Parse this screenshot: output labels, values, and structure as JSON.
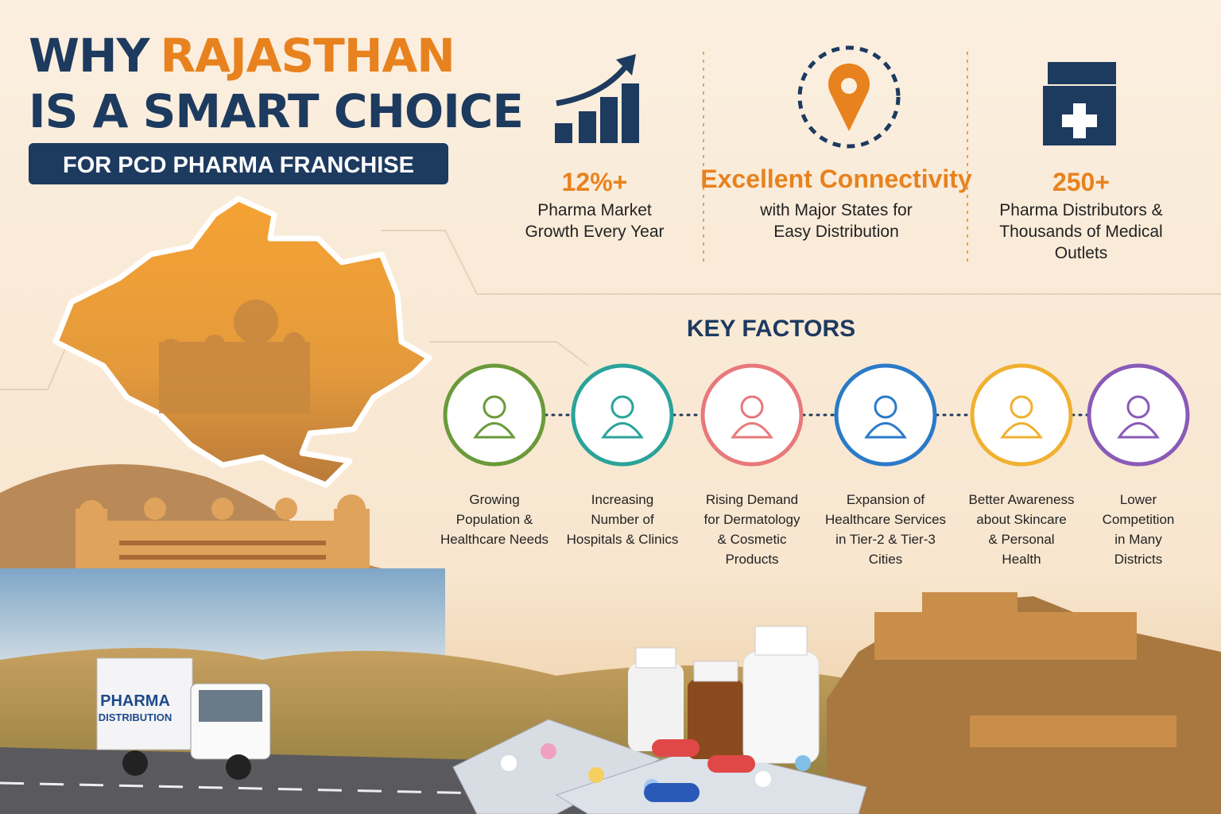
{
  "header": {
    "title_word1": "WHY",
    "title_word2": "RAJASTHAN",
    "title_line2": "IS A SMART CHOICE",
    "badge": "FOR PCD PHARMA FRANCHISE"
  },
  "stats": [
    {
      "headline": "12%+",
      "lines": [
        "Pharma Market",
        "Growth Every Year"
      ]
    },
    {
      "headline": "Excellent Connectivity",
      "lines": [
        "with Major States for",
        "Easy Distribution"
      ]
    },
    {
      "headline": "250+",
      "lines": [
        "Pharma Distributors &",
        "Thousands of Medical",
        "Outlets"
      ]
    }
  ],
  "key_factors": {
    "title": "KEY FACTORS",
    "items": [
      {
        "lines": [
          "Growing",
          "Population &",
          "Healthcare Needs"
        ]
      },
      {
        "lines": [
          "Increasing",
          "Number of",
          "Hospitals & Clinics"
        ]
      },
      {
        "lines": [
          "Rising Demand",
          "for Dermatology",
          "& Cosmetic",
          "Products"
        ]
      },
      {
        "lines": [
          "Expansion of",
          "Healthcare Services",
          "in Tier-2 & Tier-3",
          "Cities"
        ]
      },
      {
        "lines": [
          "Better Awareness",
          "about Skincare",
          "& Personal",
          "Health"
        ]
      },
      {
        "lines": [
          "Lower",
          "Competition",
          "in Many",
          "Districts"
        ]
      }
    ]
  },
  "truck": {
    "line1": "PHARMA",
    "line2": "DISTRIBUTION"
  }
}
